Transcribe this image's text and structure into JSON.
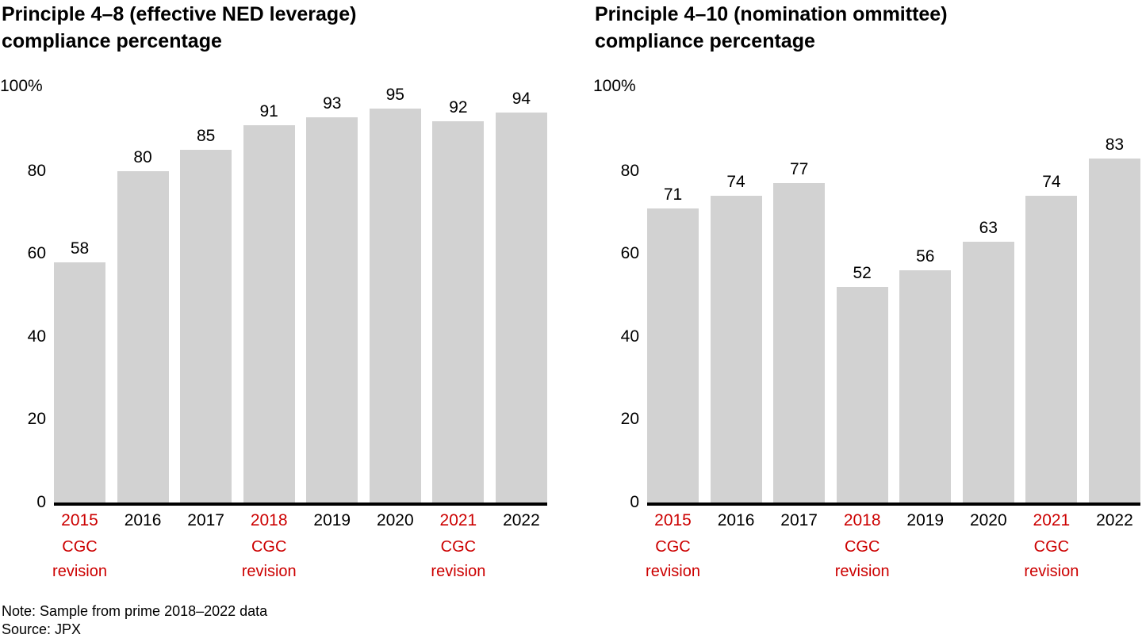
{
  "colors": {
    "bar": "#d2d2d2",
    "axis": "#000000",
    "text": "#000000",
    "revision_red": "#cc0000",
    "background": "#ffffff"
  },
  "y_axis": {
    "top_label": "100%",
    "ticks": [
      80,
      60,
      40,
      20,
      0
    ],
    "max": 100
  },
  "revision_label": "CGC\nrevision",
  "chart_data": [
    {
      "type": "bar",
      "title": "Principle 4–8 (effective NED leverage)\ncompliance percentage",
      "categories": [
        "2015",
        "2016",
        "2017",
        "2018",
        "2019",
        "2020",
        "2021",
        "2022"
      ],
      "values": [
        58,
        80,
        85,
        91,
        93,
        95,
        92,
        94
      ],
      "ylim": [
        0,
        100
      ],
      "ylabel": "100%",
      "revision_years": [
        "2015",
        "2018",
        "2021"
      ],
      "legend": "none",
      "grid": "off"
    },
    {
      "type": "bar",
      "title": "Principle 4–10 (nomination ommittee)\ncompliance percentage",
      "categories": [
        "2015",
        "2016",
        "2017",
        "2018",
        "2019",
        "2020",
        "2021",
        "2022"
      ],
      "values": [
        71,
        74,
        77,
        52,
        56,
        63,
        74,
        83
      ],
      "ylim": [
        0,
        100
      ],
      "ylabel": "100%",
      "revision_years": [
        "2015",
        "2018",
        "2021"
      ],
      "legend": "none",
      "grid": "off"
    }
  ],
  "footnote": {
    "note": "Note: Sample from prime 2018–2022 data",
    "source": "Source: JPX"
  }
}
